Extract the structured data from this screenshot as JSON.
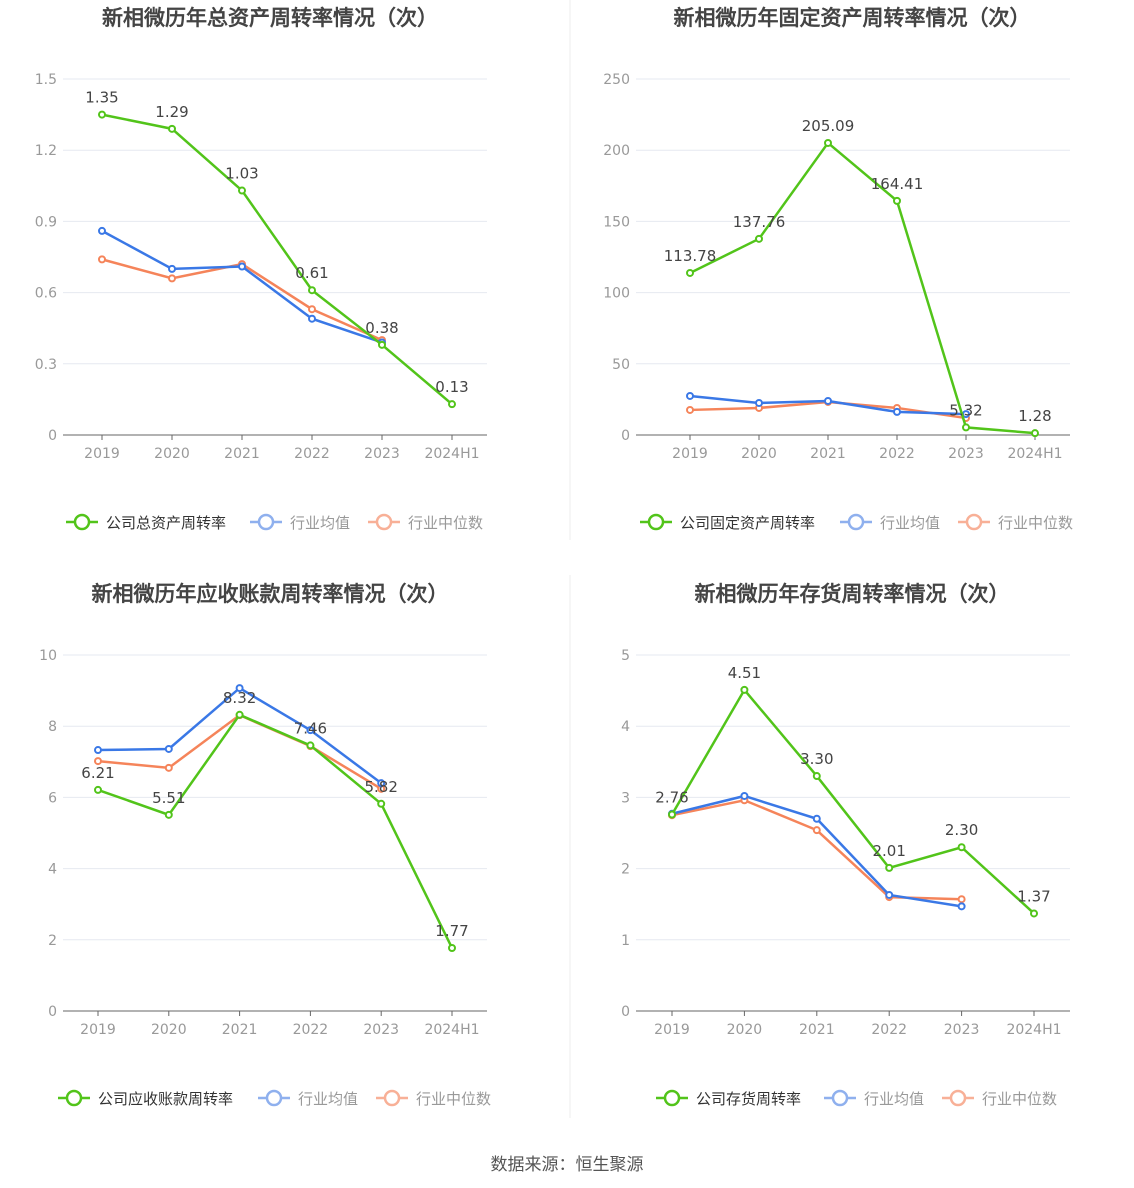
{
  "colors": {
    "company": "#52c41a",
    "avg": "#3a78e6",
    "median": "#f5845a",
    "grid": "#e6e9f0",
    "axis": "#666",
    "tick": "#999"
  },
  "source": "数据来源：恒生聚源",
  "chart_data": [
    {
      "type": "line",
      "title": "新相微历年总资产周转率情况（次）",
      "categories": [
        "2019",
        "2020",
        "2021",
        "2022",
        "2023",
        "2024H1"
      ],
      "ylim": [
        0,
        1.5
      ],
      "yticks": [
        "0",
        "0.3",
        "0.6",
        "0.9",
        "1.2",
        "1.5"
      ],
      "ytick_values": [
        0,
        0.3,
        0.6,
        0.9,
        1.2,
        1.5
      ],
      "grid": true,
      "legend": "bottom",
      "series": [
        {
          "name": "公司总资产周转率",
          "values": [
            1.35,
            1.29,
            1.03,
            0.61,
            0.38,
            0.13
          ],
          "labels": [
            "1.35",
            "1.29",
            "1.03",
            "0.61",
            "0.38",
            "0.13"
          ]
        },
        {
          "name": "行业均值",
          "values": [
            0.86,
            0.7,
            0.71,
            0.49,
            0.39,
            null
          ]
        },
        {
          "name": "行业中位数",
          "values": [
            0.74,
            0.66,
            0.72,
            0.53,
            0.4,
            null
          ]
        }
      ]
    },
    {
      "type": "line",
      "title": "新相微历年固定资产周转率情况（次）",
      "categories": [
        "2019",
        "2020",
        "2021",
        "2022",
        "2023",
        "2024H1"
      ],
      "ylim": [
        0,
        250
      ],
      "yticks": [
        "0",
        "50",
        "100",
        "150",
        "200",
        "250"
      ],
      "ytick_values": [
        0,
        50,
        100,
        150,
        200,
        250
      ],
      "grid": true,
      "legend": "bottom",
      "series": [
        {
          "name": "公司固定资产周转率",
          "values": [
            113.78,
            137.76,
            205.09,
            164.41,
            5.32,
            1.28
          ],
          "labels": [
            "113.78",
            "137.76",
            "205.09",
            "164.41",
            "5.32",
            "1.28"
          ]
        },
        {
          "name": "行业均值",
          "values": [
            27.4,
            22.5,
            23.9,
            16.2,
            14.7,
            null
          ]
        },
        {
          "name": "行业中位数",
          "values": [
            17.6,
            19.0,
            23.2,
            19.0,
            11.9,
            null
          ]
        }
      ]
    },
    {
      "type": "line",
      "title": "新相微历年应收账款周转率情况（次）",
      "categories": [
        "2019",
        "2020",
        "2021",
        "2022",
        "2023",
        "2024H1"
      ],
      "ylim": [
        0,
        10
      ],
      "yticks": [
        "0",
        "2",
        "4",
        "6",
        "8",
        "10"
      ],
      "ytick_values": [
        0,
        2,
        4,
        6,
        8,
        10
      ],
      "grid": true,
      "legend": "bottom",
      "series": [
        {
          "name": "公司应收账款周转率",
          "values": [
            6.21,
            5.51,
            8.32,
            7.46,
            5.82,
            1.77
          ],
          "labels": [
            "6.21",
            "5.51",
            "8.32",
            "7.46",
            "5.82",
            "1.77"
          ]
        },
        {
          "name": "行业均值",
          "values": [
            7.33,
            7.36,
            9.07,
            7.89,
            6.4,
            null
          ]
        },
        {
          "name": "行业中位数",
          "values": [
            7.02,
            6.83,
            8.31,
            7.44,
            6.24,
            null
          ]
        }
      ]
    },
    {
      "type": "line",
      "title": "新相微历年存货周转率情况（次）",
      "categories": [
        "2019",
        "2020",
        "2021",
        "2022",
        "2023",
        "2024H1"
      ],
      "ylim": [
        0,
        5
      ],
      "yticks": [
        "0",
        "1",
        "2",
        "3",
        "4",
        "5"
      ],
      "ytick_values": [
        0,
        1,
        2,
        3,
        4,
        5
      ],
      "grid": true,
      "legend": "bottom",
      "series": [
        {
          "name": "公司存货周转率",
          "values": [
            2.76,
            4.51,
            3.3,
            2.01,
            2.3,
            1.37
          ],
          "labels": [
            "2.76",
            "4.51",
            "3.30",
            "2.01",
            "2.30",
            "1.37"
          ]
        },
        {
          "name": "行业均值",
          "values": [
            2.77,
            3.02,
            2.7,
            1.63,
            1.47,
            null
          ]
        },
        {
          "name": "行业中位数",
          "values": [
            2.75,
            2.96,
            2.54,
            1.6,
            1.57,
            null
          ]
        }
      ]
    }
  ]
}
